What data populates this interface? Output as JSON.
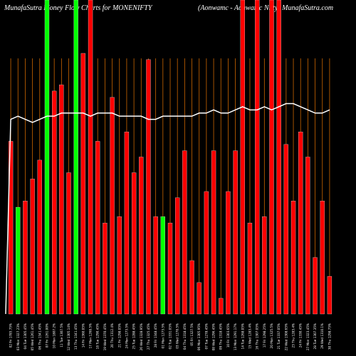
{
  "title_left": "MunafaSutra  Money Flow  Charts for MONENIFTY",
  "title_right": "(Aonwamc - Aonwamc Nifty) MunafaSutra.com",
  "colors": {
    "background": "#000000",
    "up": "#00ff00",
    "down": "#ff0000",
    "grid": "#cc6600",
    "flow_line": "#ffffff",
    "bar_outline": "#ffffff"
  },
  "chart_data": {
    "type": "bar",
    "ylim": [
      0,
      100
    ],
    "grid": "vertical",
    "categories": [
      "02 Fri 1785.75%",
      "03 Mon 1327.23%",
      "04 Tue 1305.45%",
      "05 Wed 1261.45%",
      "06 Thu 1341.45%",
      "07 Fri 1261.00%",
      "10 Mon 1807.2%",
      "11 Tue 1307.5%",
      "12 Wed 1305.14%",
      "13 Thu 1341.45%",
      "14 Fri 1360.05%",
      "17 Mon 1268.5%",
      "18 Tue 1290.45%",
      "19 Wed 1370.45%",
      "20 Thu 1312.4%",
      "21 Fri 1298.05%",
      "24 Mon 1273.5%",
      "25 Tue 1288.45%",
      "26 Wed 1328.95%",
      "27 Thu 1325.45%",
      "28 Fri 1348.45%",
      "01 Mon 1273.5%",
      "02 Tue 1331.05%",
      "03 Wed 1278.5%",
      "04 Thu 1318.45%",
      "05 Fri 1327.5%",
      "06 Mon 1305.95%",
      "07 Tue 1278.45%",
      "08 Wed 1296.45%",
      "09 Thu 1318.45%",
      "10 Fri 1303.65%",
      "13 Mon 1291.17%",
      "14 Tue 1268.05%",
      "15 Wed 1283.4%",
      "16 Thu 1307.05%",
      "17 Fri 1298.25%",
      "20 Mon 1325.5%",
      "21 Tue 1337.05%",
      "22 Wed 1308.65%",
      "23 Thu 1283.4%",
      "24 Fri 1330.45%",
      "27 Mon 1323.45%",
      "28 Tue 1307.35%",
      "29 Wed 1310.1%",
      "30 Thu 1298.75%"
    ],
    "bar_heights": [
      55,
      34,
      36,
      43,
      49,
      100,
      71,
      73,
      45,
      100,
      83,
      100,
      55,
      29,
      69,
      31,
      58,
      45,
      50,
      81,
      31,
      31,
      29,
      37,
      52,
      17,
      10,
      39,
      52,
      5,
      39,
      52,
      100,
      29,
      100,
      31,
      100,
      100,
      54,
      36,
      58,
      50,
      18,
      36,
      12
    ],
    "bar_colors": [
      "red",
      "green",
      "red",
      "red",
      "red",
      "green",
      "red",
      "red",
      "red",
      "green",
      "red",
      "red",
      "red",
      "red",
      "red",
      "red",
      "red",
      "red",
      "red",
      "red",
      "red",
      "green",
      "red",
      "red",
      "red",
      "red",
      "red",
      "red",
      "red",
      "red",
      "red",
      "red",
      "red",
      "red",
      "red",
      "red",
      "red",
      "red",
      "red",
      "red",
      "red",
      "red",
      "red",
      "red",
      "red"
    ],
    "flow_line": [
      62,
      63,
      62,
      61,
      62,
      63,
      63,
      64,
      64,
      64,
      64,
      63,
      64,
      64,
      64,
      63,
      63,
      63,
      63,
      62,
      62,
      63,
      63,
      63,
      63,
      63,
      64,
      64,
      65,
      64,
      64,
      65,
      66,
      65,
      65,
      66,
      65,
      66,
      67,
      67,
      66,
      65,
      64,
      64,
      65
    ]
  }
}
